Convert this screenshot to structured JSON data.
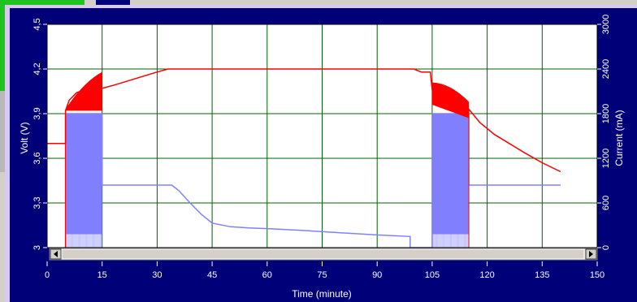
{
  "colors": {
    "background": "#000078",
    "plot_area": "#ffffff",
    "grid": "#006400",
    "voltage_series": "#ff0000",
    "current_series": "#8080ff",
    "text": "#ffffff"
  },
  "chart_data": {
    "type": "line",
    "title": "",
    "xlabel": "Time (minute)",
    "ylabel": "Volt (V)",
    "y2label": "Current (mA)",
    "xlim": [
      0,
      150
    ],
    "ylim": [
      3.0,
      4.5
    ],
    "y2lim": [
      0,
      3000
    ],
    "x_ticks": [
      "0",
      "15",
      "30",
      "45",
      "60",
      "75",
      "90",
      "105",
      "120",
      "135",
      "150"
    ],
    "y_ticks": [
      "3",
      "3,3",
      "3,6",
      "3,9",
      "4,2",
      "4,5"
    ],
    "y2_ticks": [
      "0",
      "600",
      "1200",
      "1800",
      "2400",
      "3000"
    ],
    "grid": true,
    "legend": "none",
    "series": [
      {
        "axis": "left",
        "points": [
          [
            0,
            3.7
          ],
          [
            5,
            3.7
          ],
          [
            5,
            3.92
          ],
          [
            6,
            3.99
          ],
          [
            8,
            4.04
          ],
          [
            10,
            4.06
          ],
          [
            13,
            4.07
          ],
          [
            15,
            4.07
          ],
          [
            18,
            4.09
          ],
          [
            22,
            4.12
          ],
          [
            26,
            4.15
          ],
          [
            30,
            4.18
          ],
          [
            33,
            4.2
          ],
          [
            100,
            4.2
          ],
          [
            102,
            4.18
          ],
          [
            104.5,
            4.18
          ],
          [
            105,
            4.06
          ],
          [
            107,
            4.01
          ],
          [
            110,
            3.98
          ],
          [
            113,
            3.95
          ],
          [
            115,
            3.93
          ],
          [
            118,
            3.84
          ],
          [
            122,
            3.76
          ],
          [
            126,
            3.7
          ],
          [
            130,
            3.64
          ],
          [
            135,
            3.57
          ],
          [
            140,
            3.51
          ]
        ],
        "ripple_bands": [
          {
            "x": [
              5,
              15
            ],
            "low": [
              3.92,
              3.92
            ],
            "high": [
              3.93,
              4.18
            ]
          },
          {
            "x": [
              105,
              115
            ],
            "low": [
              3.96,
              3.87
            ],
            "high": [
              4.11,
              3.98
            ]
          }
        ]
      },
      {
        "axis": "right",
        "points": [
          [
            5,
            0
          ],
          [
            5,
            1800
          ],
          [
            15,
            1800
          ],
          [
            15,
            840
          ],
          [
            34,
            840
          ],
          [
            36,
            760
          ],
          [
            39,
            600
          ],
          [
            42,
            450
          ],
          [
            45,
            330
          ],
          [
            50,
            280
          ],
          [
            55,
            265
          ],
          [
            60,
            255
          ],
          [
            70,
            230
          ],
          [
            80,
            200
          ],
          [
            90,
            170
          ],
          [
            99,
            150
          ],
          [
            99,
            0
          ],
          [
            105,
            0
          ],
          [
            105,
            1800
          ],
          [
            115,
            1800
          ],
          [
            115,
            840
          ],
          [
            140,
            840
          ]
        ],
        "pulse_bands": [
          {
            "x": [
              5,
              15
            ],
            "low": 180,
            "high": 1800
          },
          {
            "x": [
              105,
              115
            ],
            "low": 180,
            "high": 1800
          }
        ]
      }
    ]
  }
}
